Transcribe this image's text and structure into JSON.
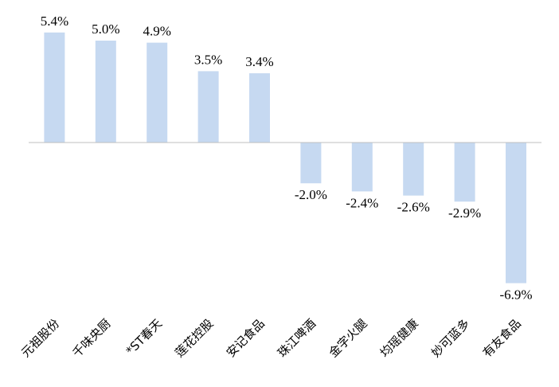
{
  "chart_data": {
    "type": "bar",
    "title": "",
    "xlabel": "",
    "ylabel": "",
    "categories": [
      "元祖股份",
      "千味央厨",
      "*ST春天",
      "莲花控股",
      "安记食品",
      "珠江啤酒",
      "金字火腿",
      "均瑶健康",
      "妙可蓝多",
      "有友食品"
    ],
    "values": [
      5.4,
      5.0,
      4.9,
      3.5,
      3.4,
      -2.0,
      -2.4,
      -2.6,
      -2.9,
      -6.9
    ],
    "value_labels": [
      "5.4%",
      "5.0%",
      "4.9%",
      "3.5%",
      "3.4%",
      "-2.0%",
      "-2.4%",
      "-2.6%",
      "-2.9%",
      "-6.9%"
    ],
    "unit": "%",
    "ylim": [
      -6.9,
      5.4
    ],
    "grid": false,
    "legend": "none",
    "bar_color": "#c6d9f1",
    "axis_color": "#bfbfbf"
  }
}
